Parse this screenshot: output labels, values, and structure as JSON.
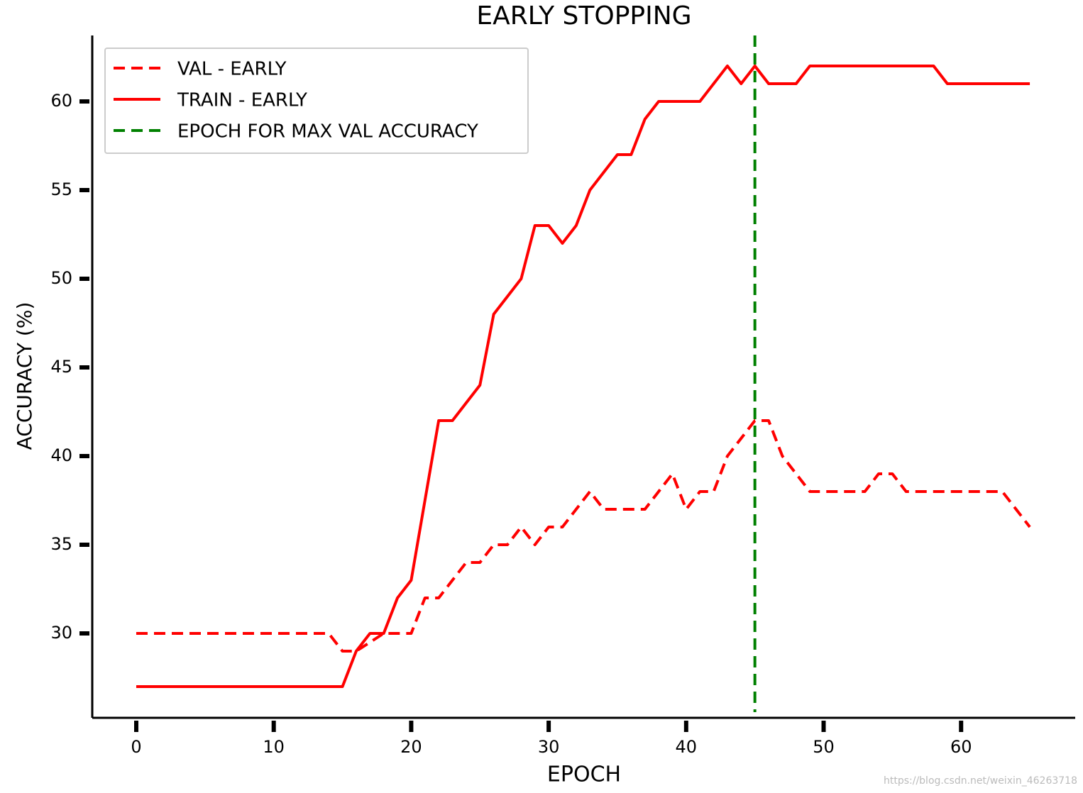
{
  "chart_data": {
    "type": "line",
    "title": "EARLY STOPPING",
    "xlabel": "EPOCH",
    "ylabel": "ACCURACY (%)",
    "x": [
      0,
      1,
      2,
      3,
      4,
      5,
      6,
      7,
      8,
      9,
      10,
      11,
      12,
      13,
      14,
      15,
      16,
      17,
      18,
      19,
      20,
      21,
      22,
      23,
      24,
      25,
      26,
      27,
      28,
      29,
      30,
      31,
      32,
      33,
      34,
      35,
      36,
      37,
      38,
      39,
      40,
      41,
      42,
      43,
      44,
      45,
      46,
      47,
      48,
      49,
      50,
      51,
      52,
      53,
      54,
      55,
      56,
      57,
      58,
      59,
      60,
      61,
      62,
      63,
      64,
      65
    ],
    "series": [
      {
        "name": "VAL - EARLY",
        "color": "red",
        "dash": true,
        "values": [
          30,
          30,
          30,
          30,
          30,
          30,
          30,
          30,
          30,
          30,
          30,
          30,
          30,
          30,
          30,
          29,
          29,
          29.5,
          30,
          30,
          30,
          32,
          32,
          33,
          34,
          34,
          35,
          35,
          36,
          35,
          36,
          36,
          37,
          38,
          37,
          37,
          37,
          37,
          38,
          39,
          37,
          38,
          38,
          40,
          41,
          42,
          42,
          40,
          39,
          38,
          38,
          38,
          38,
          38,
          39,
          39,
          38,
          38,
          38,
          38,
          38,
          38,
          38,
          38,
          37,
          36
        ]
      },
      {
        "name": "TRAIN - EARLY",
        "color": "red",
        "dash": false,
        "values": [
          27,
          27,
          27,
          27,
          27,
          27,
          27,
          27,
          27,
          27,
          27,
          27,
          27,
          27,
          27,
          27,
          29,
          30,
          30,
          32,
          33,
          37.5,
          42,
          42,
          43,
          44,
          48,
          49,
          50,
          53,
          53,
          52,
          53,
          55,
          56,
          57,
          57,
          59,
          60,
          60,
          60,
          60,
          61,
          62,
          61,
          62,
          61,
          61,
          61,
          62,
          62,
          62,
          62,
          62,
          62,
          62,
          62,
          62,
          62,
          61,
          61,
          61,
          61,
          61,
          61,
          61
        ]
      }
    ],
    "vlines": [
      {
        "name": "EPOCH FOR MAX VAL ACCURACY",
        "color": "green",
        "x": 45
      }
    ],
    "xlim": [
      -3.2,
      68.3
    ],
    "ylim": [
      25.24,
      63.72
    ],
    "xticks": [
      0,
      10,
      20,
      30,
      40,
      50,
      60
    ],
    "yticks": [
      30,
      35,
      40,
      45,
      50,
      55,
      60
    ],
    "legend": "upper left",
    "annotation": "https://blog.csdn.net/weixin_46263718"
  }
}
